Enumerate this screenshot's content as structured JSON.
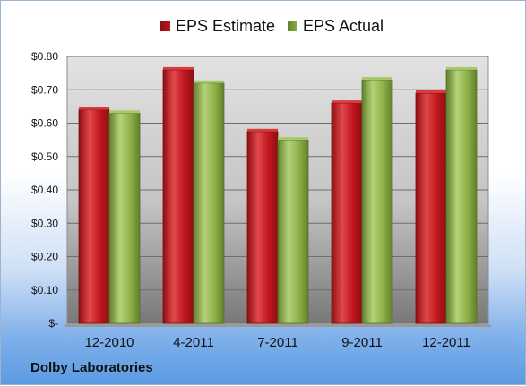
{
  "company": "Dolby Laboratories",
  "chart_data": {
    "type": "bar",
    "title": "",
    "xlabel": "",
    "ylabel": "",
    "categories": [
      "12-2010",
      "4-2011",
      "7-2011",
      "9-2011",
      "12-2011"
    ],
    "series": [
      {
        "name": "EPS Estimate",
        "values": [
          0.64,
          0.76,
          0.575,
          0.66,
          0.69
        ],
        "color": "#c0161d"
      },
      {
        "name": "EPS Actual",
        "values": [
          0.63,
          0.72,
          0.55,
          0.73,
          0.76
        ],
        "color": "#8db047"
      }
    ],
    "ylim": [
      0,
      0.8
    ],
    "yticks": [
      0,
      0.1,
      0.2,
      0.3,
      0.4,
      0.5,
      0.6,
      0.7,
      0.8
    ],
    "ytick_labels": [
      "$-",
      "$0.10",
      "$0.20",
      "$0.30",
      "$0.40",
      "$0.50",
      "$0.60",
      "$0.70",
      "$0.80"
    ],
    "grid": true,
    "legend": "top-center"
  }
}
